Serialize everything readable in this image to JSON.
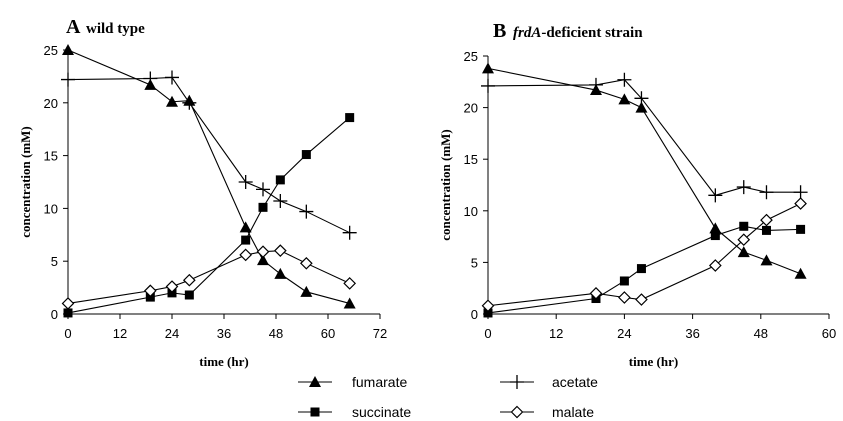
{
  "chart_data": [
    {
      "type": "line",
      "panel_letter": "A",
      "title": "wild type",
      "title_italic": "",
      "xlabel": "time (hr)",
      "ylabel": "concentration (mM)",
      "xlim": [
        0,
        72
      ],
      "ylim": [
        0,
        25
      ],
      "xticks": [
        0,
        12,
        24,
        36,
        48,
        60,
        72
      ],
      "yticks": [
        0,
        5,
        10,
        15,
        20,
        25
      ],
      "xtick_labels": [
        "0",
        "12",
        "24",
        "36",
        "48",
        "60",
        "72"
      ],
      "ytick_labels": [
        "0",
        "5",
        "10",
        "15",
        "20",
        "25"
      ],
      "grid": false,
      "series": [
        {
          "name": "fumarate",
          "marker": "triangle",
          "x": [
            0,
            19,
            24,
            28,
            41,
            45,
            49,
            55,
            65
          ],
          "y": [
            25,
            21.7,
            20.1,
            20.2,
            8.2,
            5.1,
            3.8,
            2.1,
            1.0
          ]
        },
        {
          "name": "succinate",
          "marker": "square",
          "x": [
            0,
            19,
            24,
            28,
            41,
            45,
            49,
            55,
            65
          ],
          "y": [
            0.1,
            1.6,
            2.0,
            1.8,
            7.0,
            10.1,
            12.7,
            15.1,
            18.6
          ]
        },
        {
          "name": "acetate",
          "marker": "plus",
          "x": [
            0,
            19,
            24,
            28,
            41,
            45,
            49,
            55,
            65
          ],
          "y": [
            22.2,
            22.3,
            22.4,
            20.0,
            12.5,
            11.8,
            10.7,
            9.7,
            7.7
          ]
        },
        {
          "name": "malate",
          "marker": "diamond",
          "x": [
            0,
            19,
            24,
            28,
            41,
            45,
            49,
            55,
            65
          ],
          "y": [
            1.0,
            2.2,
            2.6,
            3.2,
            5.6,
            5.9,
            6.0,
            4.8,
            2.9
          ]
        }
      ]
    },
    {
      "type": "line",
      "panel_letter": "B",
      "title": "-deficient strain",
      "title_italic": "frdA",
      "xlabel": "time (hr)",
      "ylabel": "concentration (mM)",
      "xlim": [
        0,
        60
      ],
      "ylim": [
        0,
        25
      ],
      "xticks": [
        0,
        12,
        24,
        36,
        48,
        60
      ],
      "yticks": [
        0,
        5,
        10,
        15,
        20,
        25
      ],
      "xtick_labels": [
        "0",
        "12",
        "24",
        "36",
        "48",
        "60"
      ],
      "ytick_labels": [
        "0",
        "5",
        "10",
        "15",
        "20",
        "25"
      ],
      "grid": false,
      "series": [
        {
          "name": "fumarate",
          "marker": "triangle",
          "x": [
            0,
            19,
            24,
            27,
            40,
            45,
            49,
            55
          ],
          "y": [
            23.8,
            21.7,
            20.8,
            20.0,
            8.3,
            6.0,
            5.2,
            3.9
          ]
        },
        {
          "name": "succinate",
          "marker": "square",
          "x": [
            0,
            19,
            24,
            27,
            40,
            45,
            49,
            55
          ],
          "y": [
            0.1,
            1.5,
            3.2,
            4.4,
            7.6,
            8.5,
            8.1,
            8.2
          ]
        },
        {
          "name": "acetate",
          "marker": "plus",
          "x": [
            0,
            19,
            24,
            27,
            40,
            45,
            49,
            55
          ],
          "y": [
            22.1,
            22.2,
            22.7,
            20.9,
            11.5,
            12.3,
            11.8,
            11.8
          ]
        },
        {
          "name": "malate",
          "marker": "diamond",
          "x": [
            0,
            19,
            24,
            27,
            40,
            45,
            49,
            55
          ],
          "y": [
            0.8,
            2.0,
            1.6,
            1.4,
            4.7,
            7.2,
            9.1,
            10.7
          ]
        }
      ]
    }
  ],
  "legend": {
    "placement": "bottom-center",
    "entries": [
      {
        "label": "fumarate",
        "marker": "triangle"
      },
      {
        "label": "acetate",
        "marker": "plus"
      },
      {
        "label": "succinate",
        "marker": "square"
      },
      {
        "label": "malate",
        "marker": "diamond"
      }
    ]
  }
}
